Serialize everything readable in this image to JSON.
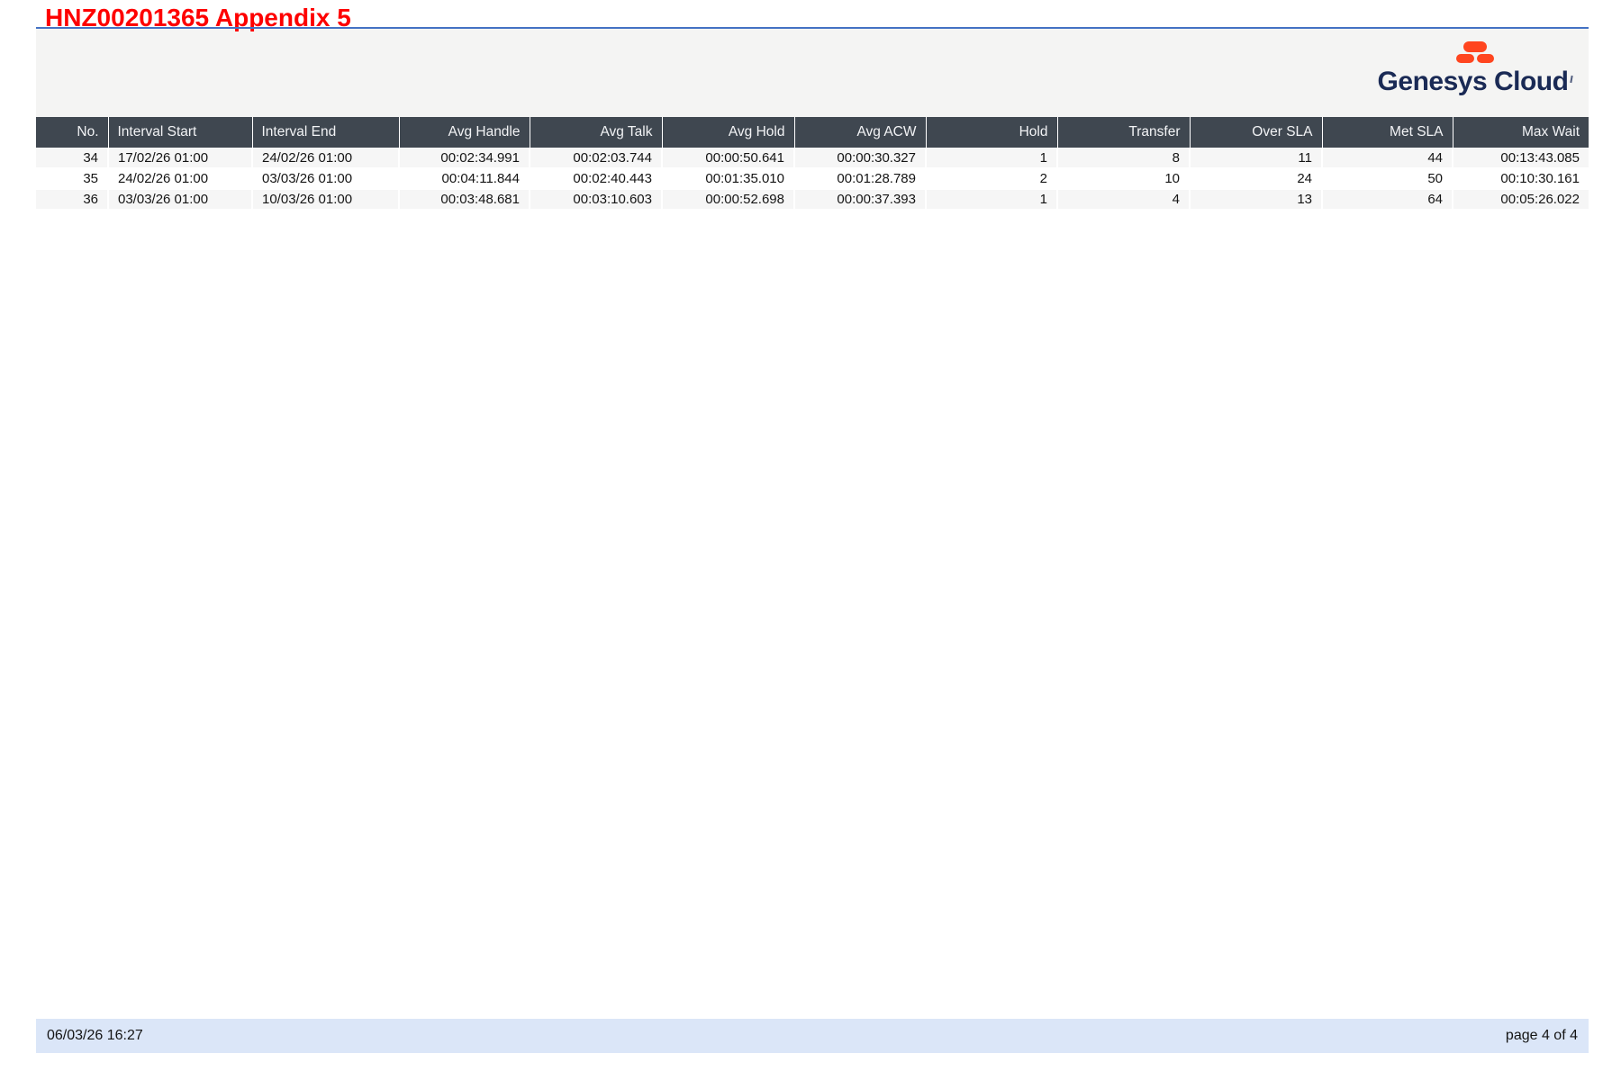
{
  "page": {
    "title": "HNZ00201365 Appendix 5"
  },
  "logo": {
    "text": "Genesys Cloud"
  },
  "colors": {
    "title_red": "#fe0000",
    "rule_blue": "#4472c4",
    "band_gray": "#f4f4f3",
    "header_bg": "#3f4750",
    "row_alt": "#f6f6f6",
    "footer_bg": "#dbe6f8",
    "logo_orange": "#ff451f",
    "logo_navy": "#1a2a55"
  },
  "table": {
    "columns": [
      {
        "label": "No.",
        "align": "right"
      },
      {
        "label": "Interval Start",
        "align": "left"
      },
      {
        "label": "Interval End",
        "align": "left"
      },
      {
        "label": "Avg Handle",
        "align": "right"
      },
      {
        "label": "Avg Talk",
        "align": "right"
      },
      {
        "label": "Avg Hold",
        "align": "right"
      },
      {
        "label": "Avg ACW",
        "align": "right"
      },
      {
        "label": "Hold",
        "align": "right"
      },
      {
        "label": "Transfer",
        "align": "right"
      },
      {
        "label": "Over SLA",
        "align": "right"
      },
      {
        "label": "Met SLA",
        "align": "right"
      },
      {
        "label": "Max Wait",
        "align": "right"
      }
    ],
    "rows": [
      [
        "34",
        "17/02/26 01:00",
        "24/02/26 01:00",
        "00:02:34.991",
        "00:02:03.744",
        "00:00:50.641",
        "00:00:30.327",
        "1",
        "8",
        "11",
        "44",
        "00:13:43.085"
      ],
      [
        "35",
        "24/02/26 01:00",
        "03/03/26 01:00",
        "00:04:11.844",
        "00:02:40.443",
        "00:01:35.010",
        "00:01:28.789",
        "2",
        "10",
        "24",
        "50",
        "00:10:30.161"
      ],
      [
        "36",
        "03/03/26 01:00",
        "10/03/26 01:00",
        "00:03:48.681",
        "00:03:10.603",
        "00:00:52.698",
        "00:00:37.393",
        "1",
        "4",
        "13",
        "64",
        "00:05:26.022"
      ]
    ]
  },
  "footer": {
    "timestamp": "06/03/26 16:27",
    "page_label": "page 4 of 4"
  }
}
